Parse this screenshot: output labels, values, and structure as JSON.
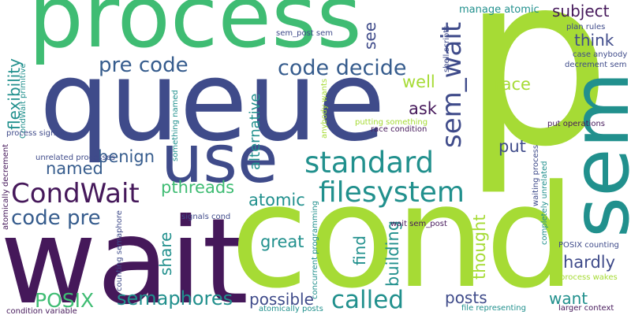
{
  "colors": {
    "navy": "#3f4b8a",
    "purple": "#45185a",
    "teal": "#21908d",
    "green": "#3fbc73",
    "lime": "#a6db35",
    "blue": "#365c8d"
  },
  "words": [
    {
      "text": "p",
      "color": "lime"
    },
    {
      "text": "process",
      "color": "green"
    },
    {
      "text": "queue",
      "color": "navy"
    },
    {
      "text": "wait",
      "color": "purple"
    },
    {
      "text": "cond",
      "color": "lime"
    },
    {
      "text": "sem",
      "color": "teal"
    },
    {
      "text": "use",
      "color": "navy"
    },
    {
      "text": "filesystem",
      "color": "teal"
    },
    {
      "text": "standard",
      "color": "teal"
    },
    {
      "text": "CondWait",
      "color": "purple"
    },
    {
      "text": "code decide",
      "color": "blue"
    },
    {
      "text": "pre code",
      "color": "blue"
    },
    {
      "text": "sem_wait",
      "color": "navy"
    },
    {
      "text": "code pre",
      "color": "blue"
    },
    {
      "text": "called",
      "color": "teal"
    },
    {
      "text": "semaphores",
      "color": "teal"
    },
    {
      "text": "POSIX",
      "color": "green"
    },
    {
      "text": "flexibility",
      "color": "teal"
    },
    {
      "text": "alternative",
      "color": "teal"
    },
    {
      "text": "subject",
      "color": "purple"
    },
    {
      "text": "think",
      "color": "navy"
    },
    {
      "text": "see",
      "color": "navy"
    },
    {
      "text": "well",
      "color": "lime"
    },
    {
      "text": "race",
      "color": "lime"
    },
    {
      "text": "ask",
      "color": "purple"
    },
    {
      "text": "benign",
      "color": "blue"
    },
    {
      "text": "named",
      "color": "blue"
    },
    {
      "text": "pthreads",
      "color": "green"
    },
    {
      "text": "atomic",
      "color": "teal"
    },
    {
      "text": "great",
      "color": "teal"
    },
    {
      "text": "share",
      "color": "teal"
    },
    {
      "text": "building",
      "color": "teal"
    },
    {
      "text": "find",
      "color": "teal"
    },
    {
      "text": "thought",
      "color": "lime"
    },
    {
      "text": "put",
      "color": "navy"
    },
    {
      "text": "hardly",
      "color": "navy"
    },
    {
      "text": "possible",
      "color": "navy"
    },
    {
      "text": "posts",
      "color": "navy"
    },
    {
      "text": "want",
      "color": "teal"
    },
    {
      "text": "manage atomic",
      "color": "teal"
    },
    {
      "text": "sem_post sem",
      "color": "navy"
    },
    {
      "text": "shell scripts",
      "color": "navy"
    },
    {
      "text": "plan rules",
      "color": "navy"
    },
    {
      "text": "case anybody",
      "color": "navy"
    },
    {
      "text": "decrement sem",
      "color": "navy"
    },
    {
      "text": "putting something",
      "color": "lime"
    },
    {
      "text": "race condition",
      "color": "purple"
    },
    {
      "text": "anybody wants",
      "color": "lime"
    },
    {
      "text": "something named",
      "color": "teal"
    },
    {
      "text": "CondWait primitive",
      "color": "teal"
    },
    {
      "text": "process signals",
      "color": "navy"
    },
    {
      "text": "unrelated processes",
      "color": "navy"
    },
    {
      "text": "atomically decrement",
      "color": "purple"
    },
    {
      "text": "counting semaphore",
      "color": "navy"
    },
    {
      "text": "concurrent programming",
      "color": "teal"
    },
    {
      "text": "signals cond",
      "color": "navy"
    },
    {
      "text": "wait sem_post",
      "color": "purple"
    },
    {
      "text": "waiting process",
      "color": "navy"
    },
    {
      "text": "completely unrelated",
      "color": "teal"
    },
    {
      "text": "put operations",
      "color": "purple"
    },
    {
      "text": "POSIX counting",
      "color": "navy"
    },
    {
      "text": "process wakes",
      "color": "lime"
    },
    {
      "text": "file representing",
      "color": "teal"
    },
    {
      "text": "larger context",
      "color": "purple"
    },
    {
      "text": "atomically posts",
      "color": "teal"
    },
    {
      "text": "condition variable",
      "color": "purple"
    }
  ]
}
